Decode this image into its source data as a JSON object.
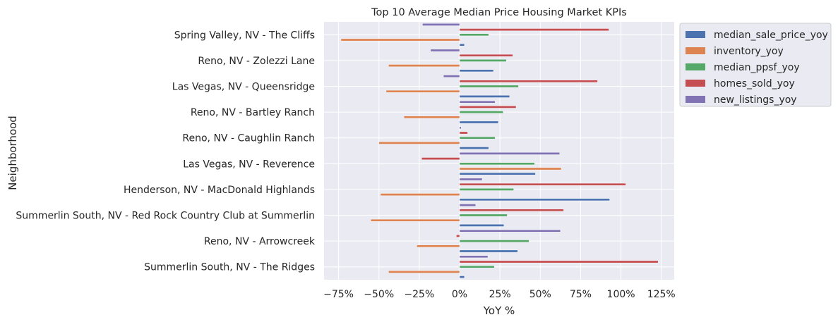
{
  "chart_data": {
    "type": "bar",
    "orientation": "horizontal",
    "title": "Top 10 Average Median Price Housing Market KPIs",
    "xlabel": "YoY %",
    "ylabel": "Neighborhood",
    "xlim": [
      -0.84,
      1.33
    ],
    "xticks": [
      -0.75,
      -0.5,
      -0.25,
      0,
      0.25,
      0.5,
      0.75,
      1.0,
      1.25
    ],
    "xtick_labels": [
      "−75%",
      "−50%",
      "−25%",
      "0%",
      "25%",
      "50%",
      "75%",
      "100%",
      "125%"
    ],
    "grid": true,
    "legend_position": "outside top-right",
    "categories": [
      "Summerlin South, NV - The Ridges",
      "Reno, NV - Arrowcreek",
      "Summerlin South, NV - Red Rock Country Club at Summerlin",
      "Henderson, NV - MacDonald Highlands",
      "Las Vegas, NV - Reverence",
      "Reno, NV - Caughlin Ranch",
      "Reno, NV - Bartley Ranch",
      "Las Vegas, NV - Queensridge",
      "Reno, NV - Zolezzi Lane",
      "Spring Valley, NV - The Cliffs"
    ],
    "series": [
      {
        "name": "median_sale_price_yoy",
        "color": "#4c72b0",
        "values": [
          0.03,
          0.36,
          0.275,
          0.93,
          0.47,
          0.18,
          0.24,
          0.31,
          0.21,
          0.03
        ]
      },
      {
        "name": "inventory_yoy",
        "color": "#dd8452",
        "values": [
          -0.44,
          -0.265,
          -0.55,
          -0.49,
          0.63,
          -0.5,
          -0.345,
          -0.455,
          -0.44,
          -0.735
        ]
      },
      {
        "name": "median_ppsf_yoy",
        "color": "#55a868",
        "values": [
          0.215,
          0.43,
          0.295,
          0.335,
          0.465,
          0.22,
          0.27,
          0.365,
          0.29,
          0.18
        ]
      },
      {
        "name": "homes_sold_yoy",
        "color": "#c44e52",
        "values": [
          1.23,
          -0.02,
          0.645,
          1.03,
          -0.235,
          0.05,
          0.35,
          0.855,
          0.33,
          0.925
        ]
      },
      {
        "name": "new_listings_yoy",
        "color": "#8172b3",
        "values": [
          0.175,
          0.625,
          0.1,
          0.14,
          0.62,
          0.01,
          0.22,
          -0.1,
          -0.18,
          -0.23
        ]
      }
    ]
  }
}
